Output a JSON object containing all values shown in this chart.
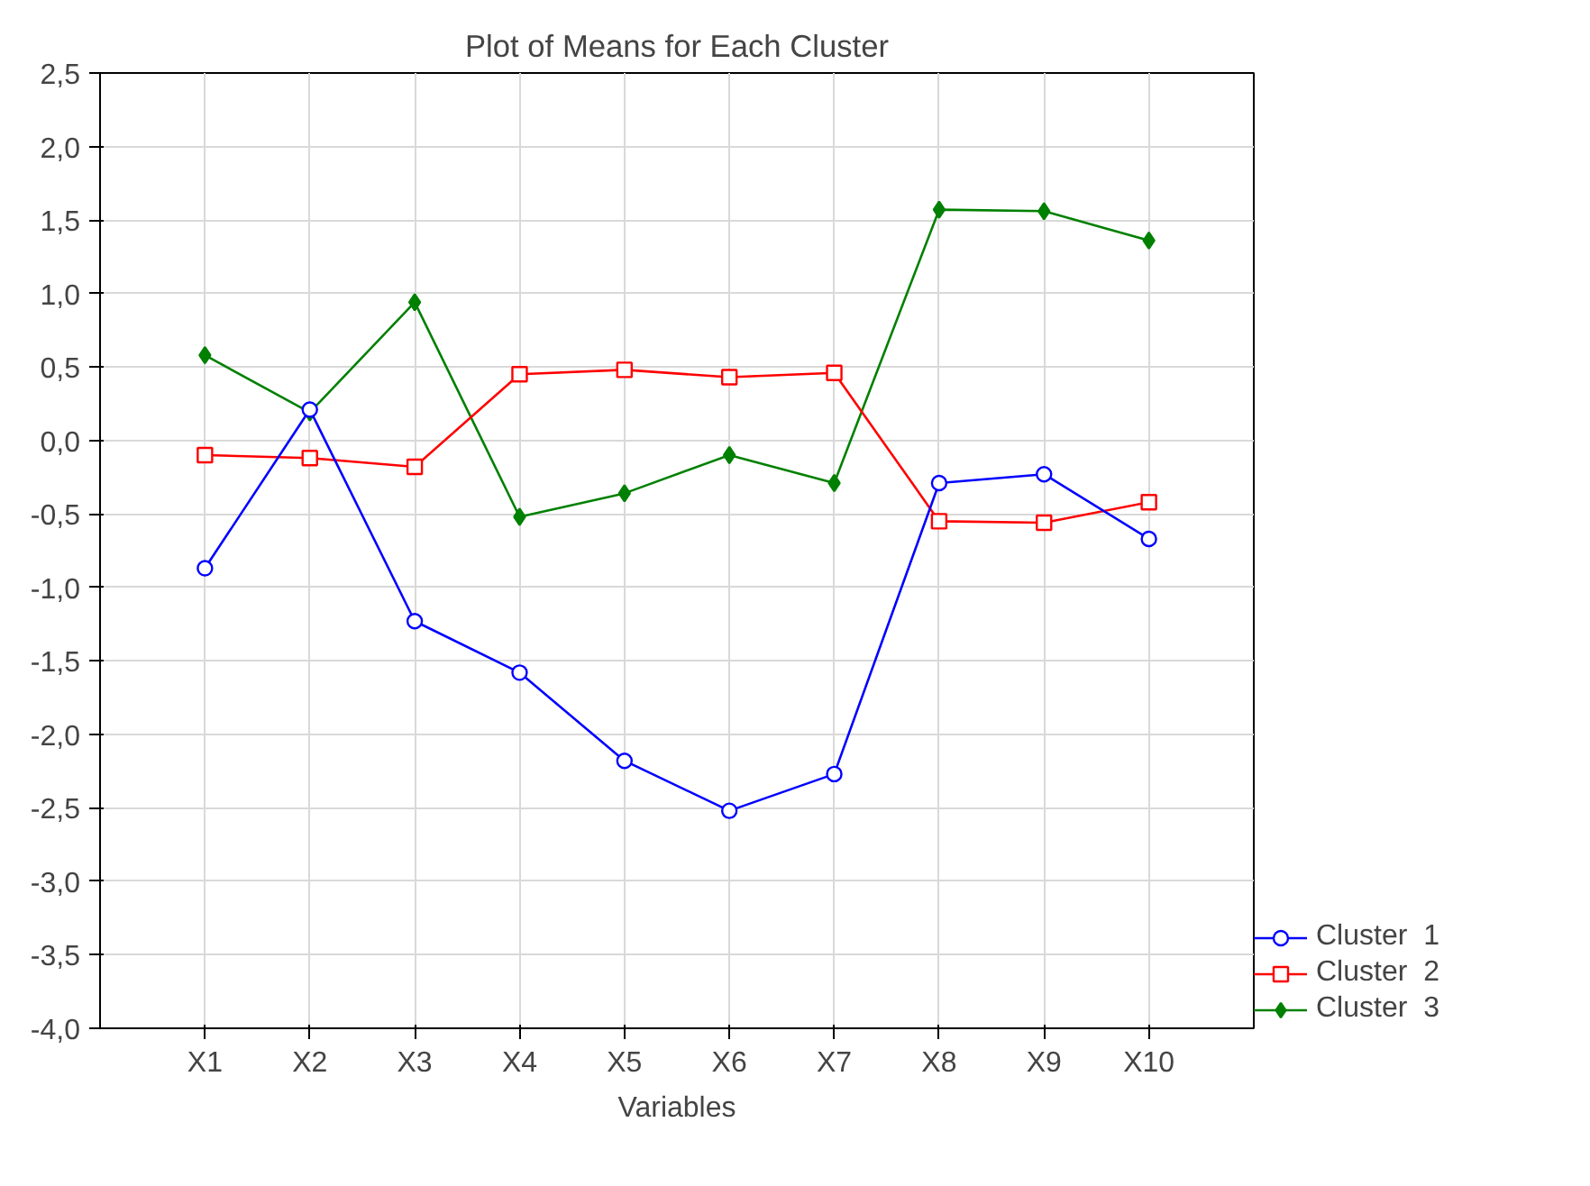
{
  "chart_data": {
    "type": "line",
    "title": "Plot of Means for Each Cluster",
    "xlabel": "Variables",
    "categories": [
      "X1",
      "X2",
      "X3",
      "X4",
      "X5",
      "X6",
      "X7",
      "X8",
      "X9",
      "X10"
    ],
    "series": [
      {
        "name": "Cluster  1",
        "color": "#0000ff",
        "marker": "circle",
        "values": [
          -0.87,
          0.21,
          -1.23,
          -1.58,
          -2.18,
          -2.52,
          -2.27,
          -0.29,
          -0.23,
          -0.67
        ]
      },
      {
        "name": "Cluster  2",
        "color": "#ff0000",
        "marker": "square",
        "values": [
          -0.1,
          -0.12,
          -0.18,
          0.45,
          0.48,
          0.43,
          0.46,
          -0.55,
          -0.56,
          -0.42
        ]
      },
      {
        "name": "Cluster  3",
        "color": "#008000",
        "marker": "diamond",
        "values": [
          0.58,
          0.19,
          0.94,
          -0.52,
          -0.36,
          -0.1,
          -0.29,
          1.57,
          1.56,
          1.36
        ]
      }
    ],
    "ylim": [
      -4.0,
      2.5
    ],
    "yticks": [
      {
        "value": -4.0,
        "label": "-4,0"
      },
      {
        "value": -3.5,
        "label": "-3,5"
      },
      {
        "value": -3.0,
        "label": "-3,0"
      },
      {
        "value": -2.5,
        "label": "-2,5"
      },
      {
        "value": -2.0,
        "label": "-2,0"
      },
      {
        "value": -1.5,
        "label": "-1,5"
      },
      {
        "value": -1.0,
        "label": "-1,0"
      },
      {
        "value": -0.5,
        "label": "-0,5"
      },
      {
        "value": 0.0,
        "label": "0,0"
      },
      {
        "value": 0.5,
        "label": "0,5"
      },
      {
        "value": 1.0,
        "label": "1,0"
      },
      {
        "value": 1.5,
        "label": "1,5"
      },
      {
        "value": 2.0,
        "label": "2,0"
      },
      {
        "value": 2.5,
        "label": "2,5"
      }
    ],
    "grid": true,
    "legend": "bottom right",
    "line_style": "solid"
  }
}
